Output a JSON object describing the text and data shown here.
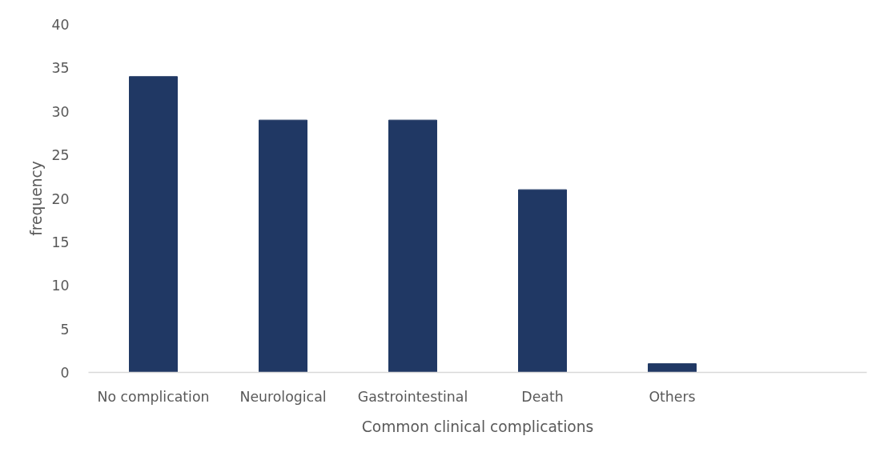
{
  "chart_data": {
    "type": "bar",
    "xlabel": "Common clinical complications",
    "ylabel": "frequency",
    "categories": [
      "No complication",
      "Neurological",
      "Gastrointestinal",
      "Death",
      "Others",
      null
    ],
    "values": [
      34,
      29,
      29,
      21,
      1,
      null
    ],
    "color": "#203864",
    "ylim": [
      0,
      40
    ],
    "yticks": [
      0,
      5,
      10,
      15,
      20,
      25,
      30,
      35,
      40
    ],
    "grid": false
  }
}
